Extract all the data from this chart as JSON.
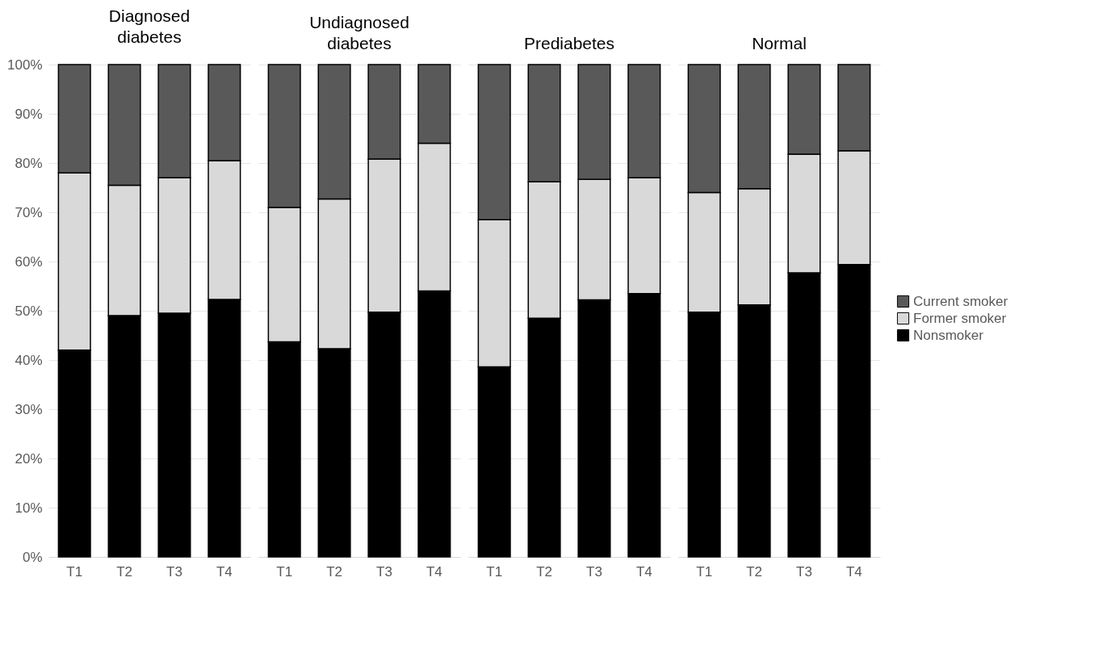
{
  "chart_data": [
    {
      "type": "bar",
      "title": "Diagnosed diabetes",
      "categories": [
        "T1",
        "T2",
        "T3",
        "T4"
      ],
      "stacked": true,
      "ylim": [
        0,
        100
      ],
      "yticks": [
        {
          "value": 0,
          "label": "0%"
        },
        {
          "value": 10,
          "label": "10%"
        },
        {
          "value": 20,
          "label": "20%"
        },
        {
          "value": 30,
          "label": "30%"
        },
        {
          "value": 40,
          "label": "40%"
        },
        {
          "value": 50,
          "label": "50%"
        },
        {
          "value": 60,
          "label": "60%"
        },
        {
          "value": 70,
          "label": "70%"
        },
        {
          "value": 80,
          "label": "80%"
        },
        {
          "value": 90,
          "label": "90%"
        },
        {
          "value": 100,
          "label": "100%"
        }
      ],
      "grid": "y",
      "legend": "right",
      "series": [
        {
          "name": "Nonsmoker",
          "color": "#000000",
          "values": [
            42,
            49,
            49.5,
            52.3
          ]
        },
        {
          "name": "Former smoker",
          "color": "#d9d9d9",
          "values": [
            36,
            26.5,
            27.5,
            28.2
          ]
        },
        {
          "name": "Current smoker",
          "color": "#595959",
          "values": [
            22,
            24.5,
            23,
            19.5
          ]
        }
      ]
    },
    {
      "type": "bar",
      "title": "Undiagnosed diabetes",
      "categories": [
        "T1",
        "T2",
        "T3",
        "T4"
      ],
      "stacked": true,
      "ylim": [
        0,
        100
      ],
      "yticks": [
        {
          "value": 0,
          "label": null
        },
        {
          "value": 10,
          "label": null
        },
        {
          "value": 20,
          "label": null
        },
        {
          "value": 30,
          "label": null
        },
        {
          "value": 40,
          "label": null
        },
        {
          "value": 50,
          "label": null
        },
        {
          "value": 60,
          "label": null
        },
        {
          "value": 70,
          "label": null
        },
        {
          "value": 80,
          "label": null
        },
        {
          "value": 90,
          "label": null
        },
        {
          "value": 100,
          "label": null
        }
      ],
      "grid": "y",
      "tick_labels": "x",
      "series": [
        {
          "color": "#000000",
          "values": [
            43.7,
            42.3,
            49.7,
            54
          ]
        },
        {
          "color": "#d9d9d9",
          "values": [
            27.3,
            30.4,
            31.1,
            30
          ]
        },
        {
          "color": "#595959",
          "values": [
            29,
            27.3,
            19.2,
            16
          ]
        }
      ]
    },
    {
      "type": "bar",
      "title": "Prediabetes",
      "categories": [
        "T1",
        "T2",
        "T3",
        "T4"
      ],
      "stacked": true,
      "ylim": [
        0,
        100
      ],
      "yticks": [
        {
          "value": 0,
          "label": null
        },
        {
          "value": 10,
          "label": null
        },
        {
          "value": 20,
          "label": null
        },
        {
          "value": 30,
          "label": null
        },
        {
          "value": 40,
          "label": null
        },
        {
          "value": 50,
          "label": null
        },
        {
          "value": 60,
          "label": null
        },
        {
          "value": 70,
          "label": null
        },
        {
          "value": 80,
          "label": null
        },
        {
          "value": 90,
          "label": null
        },
        {
          "value": 100,
          "label": null
        }
      ],
      "grid": "y",
      "tick_labels": "x",
      "series": [
        {
          "color": "#000000",
          "values": [
            38.6,
            48.5,
            52.2,
            53.5
          ]
        },
        {
          "color": "#d9d9d9",
          "values": [
            29.9,
            27.7,
            24.5,
            23.5
          ]
        },
        {
          "color": "#595959",
          "values": [
            31.5,
            23.8,
            23.3,
            23
          ]
        }
      ]
    },
    {
      "type": "bar",
      "title": "Normal",
      "categories": [
        "T1",
        "T2",
        "T3",
        "T4"
      ],
      "stacked": true,
      "ylim": [
        0,
        100
      ],
      "yticks": [
        {
          "value": 0,
          "label": null
        },
        {
          "value": 10,
          "label": null
        },
        {
          "value": 20,
          "label": null
        },
        {
          "value": 30,
          "label": null
        },
        {
          "value": 40,
          "label": null
        },
        {
          "value": 50,
          "label": null
        },
        {
          "value": 60,
          "label": null
        },
        {
          "value": 70,
          "label": null
        },
        {
          "value": 80,
          "label": null
        },
        {
          "value": 90,
          "label": null
        },
        {
          "value": 100,
          "label": null
        }
      ],
      "grid": "y",
      "tick_labels": "x",
      "series": [
        {
          "color": "#000000",
          "values": [
            49.7,
            51.2,
            57.7,
            59.4
          ]
        },
        {
          "color": "#d9d9d9",
          "values": [
            24.3,
            23.6,
            24.1,
            23.1
          ]
        },
        {
          "color": "#595959",
          "values": [
            26,
            25.2,
            18.2,
            17.5
          ]
        }
      ]
    }
  ]
}
